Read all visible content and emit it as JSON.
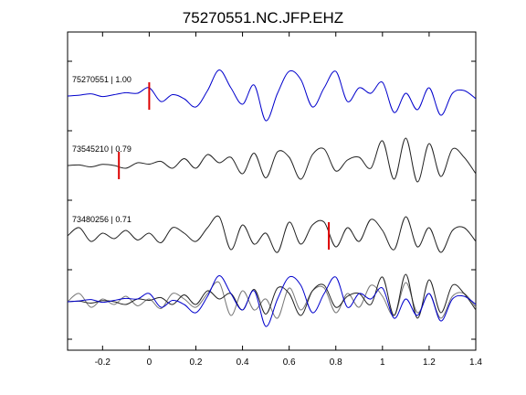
{
  "chart_data": {
    "type": "line",
    "title": "75270551.NC.JFP.EHZ",
    "xlabel": "",
    "ylabel": "",
    "xlim": [
      -0.35,
      1.4
    ],
    "xticks": [
      -0.2,
      0,
      0.2,
      0.4,
      0.6,
      0.8,
      1,
      1.2,
      1.4
    ],
    "xtick_labels": [
      "-0.2",
      "0",
      "0.2",
      "0.4",
      "0.6",
      "0.8",
      "1",
      "1.2",
      "1.4"
    ],
    "grid": false,
    "legend": "none",
    "colors": {
      "reference": "#0000cc",
      "trace": "#222222",
      "overlay": "#777777",
      "pick": "#dd0000"
    },
    "traces": [
      {
        "label": "75270551 | 1.00",
        "pick_time": 0.0,
        "color": "#0000cc",
        "x": [
          -0.35,
          -0.3,
          -0.25,
          -0.2,
          -0.15,
          -0.1,
          -0.05,
          0,
          0.05,
          0.1,
          0.15,
          0.2,
          0.25,
          0.3,
          0.35,
          0.4,
          0.45,
          0.5,
          0.55,
          0.6,
          0.65,
          0.7,
          0.75,
          0.8,
          0.85,
          0.9,
          0.95,
          1.0,
          1.05,
          1.1,
          1.15,
          1.2,
          1.25,
          1.3,
          1.35,
          1.4
        ],
        "y": [
          0.0,
          0.03,
          0.08,
          -0.02,
          0.05,
          0.12,
          0.1,
          0.3,
          -0.2,
          0.05,
          -0.1,
          -0.4,
          0.2,
          0.95,
          0.3,
          -0.3,
          0.4,
          -0.9,
          0.1,
          0.9,
          0.6,
          -0.4,
          0.3,
          0.9,
          -0.2,
          0.3,
          0.1,
          0.5,
          -0.6,
          0.1,
          -0.5,
          0.3,
          -0.7,
          0.1,
          0.2,
          -0.1
        ]
      },
      {
        "label": "73545210 | 0.79",
        "pick_time": -0.13,
        "color": "#222222",
        "x": [
          -0.35,
          -0.3,
          -0.25,
          -0.2,
          -0.15,
          -0.1,
          -0.05,
          0,
          0.05,
          0.1,
          0.15,
          0.2,
          0.25,
          0.3,
          0.35,
          0.4,
          0.45,
          0.5,
          0.55,
          0.6,
          0.65,
          0.7,
          0.75,
          0.8,
          0.85,
          0.9,
          0.95,
          1.0,
          1.05,
          1.1,
          1.15,
          1.2,
          1.25,
          1.3,
          1.35,
          1.4
        ],
        "y": [
          0.0,
          0.02,
          -0.05,
          0.04,
          0.0,
          -0.1,
          0.1,
          0.05,
          0.15,
          -0.1,
          0.25,
          -0.1,
          0.4,
          0.1,
          0.3,
          -0.3,
          0.45,
          -0.45,
          0.5,
          0.3,
          -0.5,
          0.4,
          0.6,
          -0.2,
          0.2,
          0.3,
          -0.1,
          0.9,
          -0.5,
          1.0,
          -0.6,
          0.8,
          -0.4,
          0.6,
          0.3,
          -0.3
        ]
      },
      {
        "label": "73480256 | 0.71",
        "pick_time": 0.77,
        "color": "#222222",
        "x": [
          -0.35,
          -0.3,
          -0.25,
          -0.2,
          -0.15,
          -0.1,
          -0.05,
          0,
          0.05,
          0.1,
          0.15,
          0.2,
          0.25,
          0.3,
          0.35,
          0.4,
          0.45,
          0.5,
          0.55,
          0.6,
          0.65,
          0.7,
          0.75,
          0.8,
          0.85,
          0.9,
          0.95,
          1.0,
          1.05,
          1.1,
          1.15,
          1.2,
          1.25,
          1.3,
          1.35,
          1.4
        ],
        "y": [
          0.0,
          0.3,
          -0.2,
          0.1,
          -0.1,
          0.2,
          -0.15,
          0.1,
          -0.25,
          0.3,
          0.1,
          -0.2,
          0.3,
          0.7,
          -0.5,
          0.4,
          -0.3,
          0.1,
          -0.6,
          0.5,
          -0.3,
          0.4,
          0.5,
          -0.4,
          0.3,
          -0.2,
          0.6,
          0.2,
          -0.5,
          0.7,
          -0.4,
          0.3,
          -0.6,
          0.2,
          0.3,
          -0.2
        ]
      }
    ],
    "overlay_colors": [
      "#0000cc",
      "#222222",
      "#777777"
    ]
  }
}
